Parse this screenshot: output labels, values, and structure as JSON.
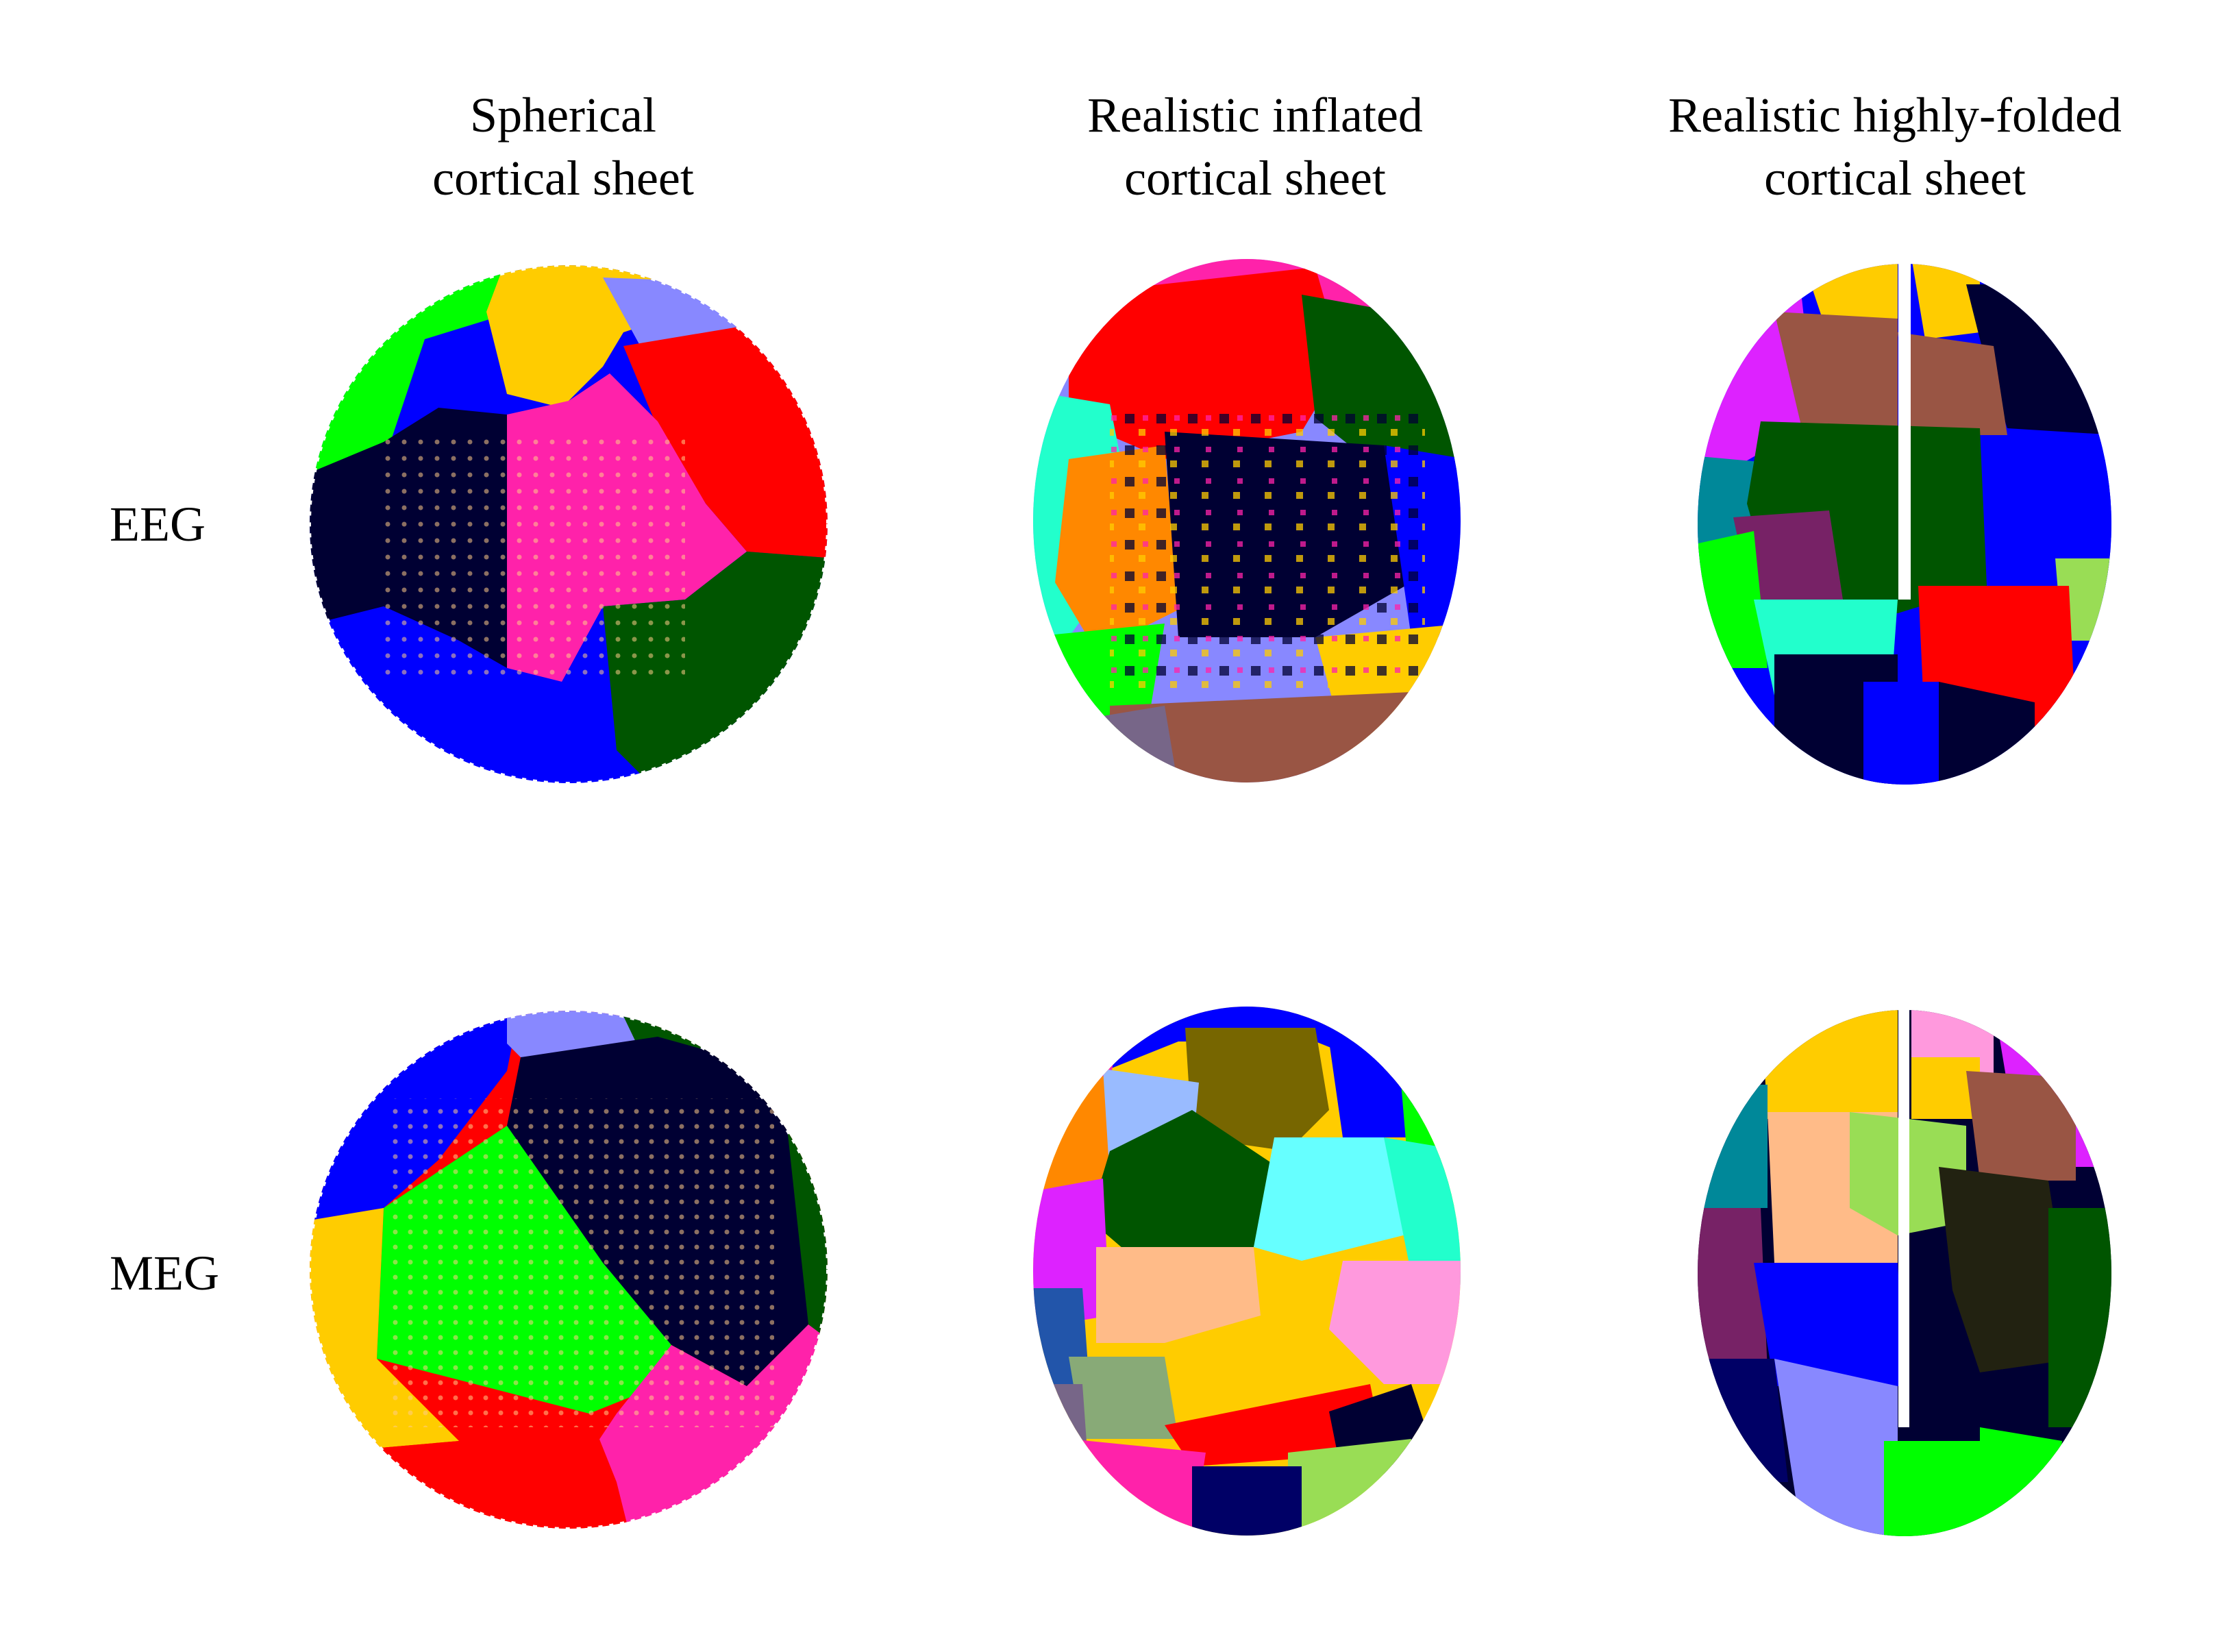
{
  "columns": [
    {
      "id": "spherical",
      "title": "Spherical\ncortical sheet"
    },
    {
      "id": "inflated",
      "title": "Realistic inflated\ncortical sheet"
    },
    {
      "id": "folded",
      "title": "Realistic highly-folded\ncortical sheet"
    }
  ],
  "rows": [
    {
      "id": "eeg",
      "label": "EEG"
    },
    {
      "id": "meg",
      "label": "MEG"
    }
  ],
  "colors": {
    "black_navy": "#000033",
    "pink": "#ff22aa",
    "red": "#ff0000",
    "blue": "#0000ff",
    "green": "#00ff00",
    "dark_green": "#005500",
    "yellow": "#ffcc00",
    "periwinkle": "#8888ff",
    "magenta": "#dd22ff",
    "brown": "#995544",
    "teal": "#008899",
    "purple": "#772266",
    "aquamarine": "#22ffcc",
    "olive": "#776600",
    "cyan": "#66ffff",
    "peach": "#ffbb88",
    "light_pink": "#ff99dd",
    "orange": "#ff8800",
    "light_green": "#99dd55",
    "sage": "#88aa77",
    "gray_purple": "#776688",
    "light_blue": "#99bbff",
    "dots": "#ffcc88"
  }
}
